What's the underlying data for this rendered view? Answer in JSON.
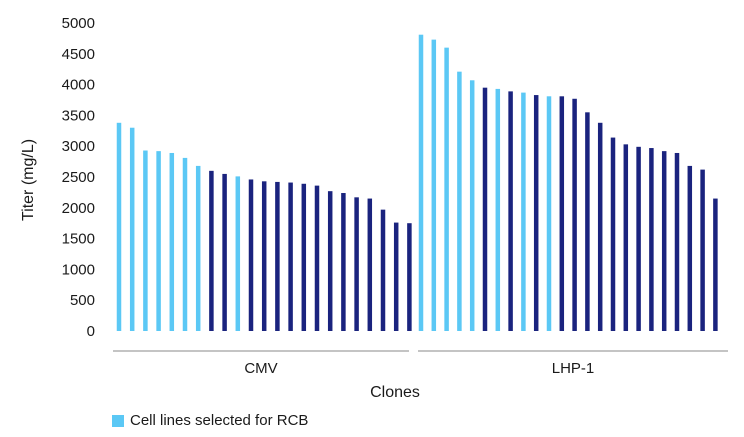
{
  "chart_data": {
    "type": "bar",
    "title": "",
    "xlabel": "Clones",
    "ylabel": "Titer (mg/L)",
    "ylim": [
      0,
      5000
    ],
    "yticks": [
      0,
      500,
      1000,
      1500,
      2000,
      2500,
      3000,
      3500,
      4000,
      4500,
      5000
    ],
    "grid": false,
    "legend_position": "bottom-left",
    "legend": [
      {
        "label": "Cell lines selected for RCB",
        "color": "#5bc8f5"
      }
    ],
    "colors": {
      "selected": "#5bc8f5",
      "other": "#1a237e"
    },
    "groups": [
      {
        "name": "CMV",
        "values": [
          3380,
          3300,
          2930,
          2920,
          2890,
          2810,
          2680,
          2600,
          2550,
          2510,
          2460,
          2430,
          2420,
          2410,
          2390,
          2360,
          2270,
          2240,
          2170,
          2150,
          1970,
          1760,
          1750
        ],
        "selected": [
          true,
          true,
          true,
          true,
          true,
          true,
          true,
          false,
          false,
          true,
          false,
          false,
          false,
          false,
          false,
          false,
          false,
          false,
          false,
          false,
          false,
          false,
          false
        ]
      },
      {
        "name": "LHP-1",
        "values": [
          4810,
          4730,
          4600,
          4210,
          4070,
          3950,
          3930,
          3890,
          3870,
          3830,
          3810,
          3810,
          3770,
          3550,
          3380,
          3140,
          3030,
          2990,
          2970,
          2920,
          2890,
          2680,
          2620,
          2150
        ],
        "selected": [
          true,
          true,
          true,
          true,
          true,
          false,
          true,
          false,
          true,
          false,
          true,
          false,
          false,
          false,
          false,
          false,
          false,
          false,
          false,
          false,
          false,
          false,
          false,
          false
        ]
      }
    ]
  }
}
